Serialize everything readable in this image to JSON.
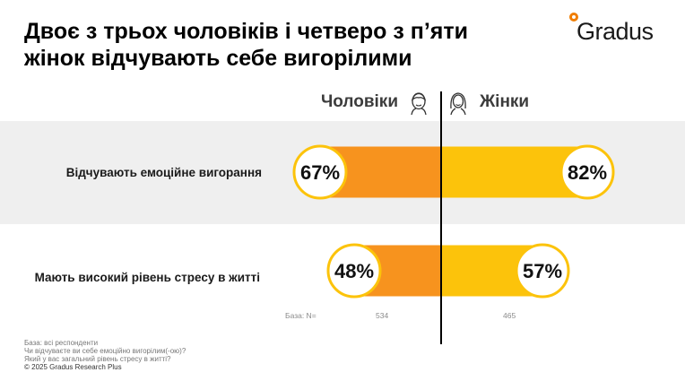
{
  "title_lines": [
    "Двоє з трьох чоловіків і четверо з п’яти",
    "жінок відчувають себе вигорілими"
  ],
  "logo": {
    "text": "Gradus",
    "accent": "#f07d00"
  },
  "columns": {
    "men": "Чоловіки",
    "women": "Жінки",
    "men_icon": "man-face-icon",
    "women_icon": "woman-face-icon"
  },
  "chart_data": {
    "type": "bar",
    "orientation": "diverging-horizontal",
    "categories": [
      "Відчувають емоційне вигорання",
      "Мають високий рівень стресу в житті"
    ],
    "series": [
      {
        "name": "Чоловіки",
        "values": [
          67,
          48
        ],
        "labels": [
          "67%",
          "48%"
        ],
        "color": "#f7931e"
      },
      {
        "name": "Жінки",
        "values": [
          82,
          57
        ],
        "labels": [
          "82%",
          "57%"
        ],
        "color": "#fcc30b"
      }
    ],
    "unit": "%",
    "xlim": [
      0,
      100
    ]
  },
  "base": {
    "label": "База: N=",
    "men": "534",
    "women": "465"
  },
  "footnotes": [
    "База: всі респонденти",
    "Чи відчуваєте ви себе емоційно вигорілим(-ою)?",
    "Який у вас загальний рівень стресу в житті?"
  ],
  "copyright": "© 2025 Gradus Research Plus",
  "colors": {
    "band": "#efefef",
    "circle_border": "#fcc30b",
    "divider": "#000000"
  }
}
